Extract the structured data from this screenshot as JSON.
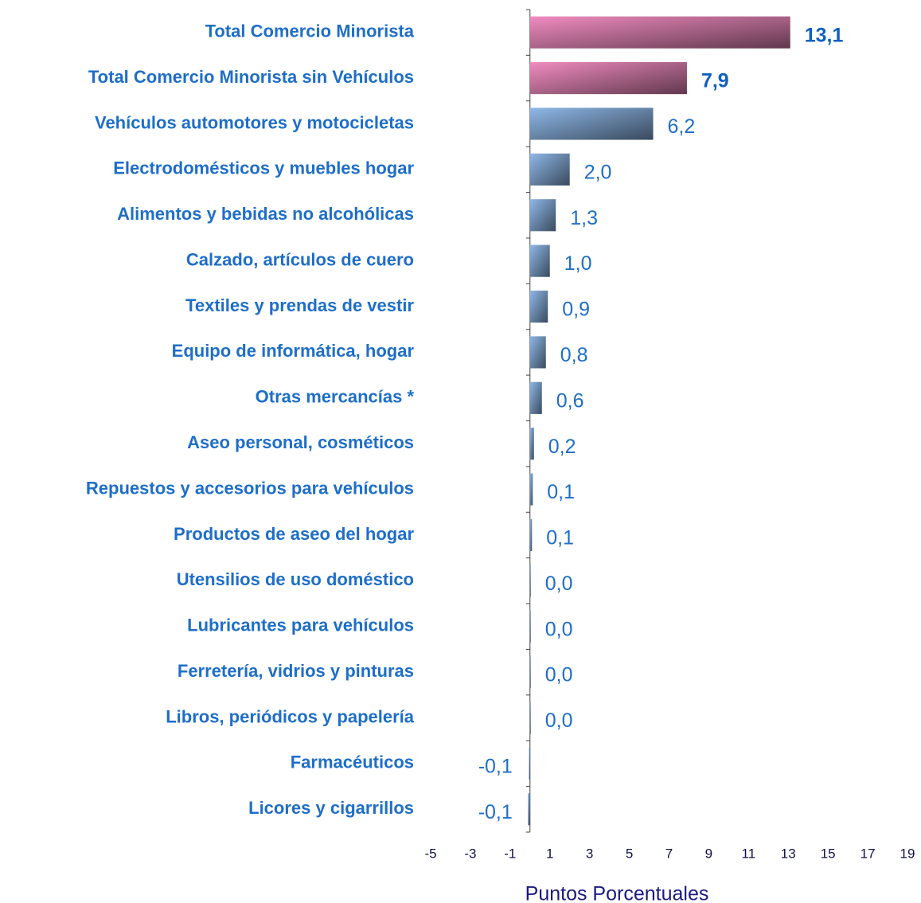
{
  "chart_data": {
    "type": "barh",
    "xlabel": "Puntos Porcentuales",
    "categories": [
      "Total Comercio Minorista",
      "Total Comercio Minorista sin Vehículos",
      "Vehículos automotores y motocicletas",
      "Electrodomésticos y muebles hogar",
      "Alimentos y bebidas no alcohólicas",
      "Calzado, artículos de cuero",
      "Textiles y prendas de vestir",
      "Equipo de informática, hogar",
      "Otras mercancías  *",
      "Aseo personal, cosméticos",
      "Repuestos y accesorios para vehículos",
      "Productos de aseo del  hogar",
      "Utensilios de uso doméstico",
      "Lubricantes para vehículos",
      "Ferretería, vidrios y pinturas",
      "Libros, periódicos y papelería",
      "Farmacéuticos",
      "Licores y cigarrillos"
    ],
    "values": [
      13.1,
      7.9,
      6.2,
      2.0,
      1.3,
      1.0,
      0.9,
      0.8,
      0.6,
      0.2,
      0.14,
      0.1,
      0.04,
      0.04,
      0.04,
      0.04,
      -0.05,
      -0.1
    ],
    "value_labels": [
      "13,1",
      "7,9",
      "6,2",
      "2,0",
      "1,3",
      "1,0",
      "0,9",
      "0,8",
      "0,6",
      "0,2",
      "0,1",
      "0,1",
      "0,0",
      "0,0",
      "0,0",
      "0,0",
      "-0,1",
      "-0,1"
    ],
    "colors": [
      "#f08cc0",
      "#f08cc0",
      "#8fb8e8",
      "#8fb8e8",
      "#8fb8e8",
      "#8fb8e8",
      "#8fb8e8",
      "#8fb8e8",
      "#8fb8e8",
      "#8fb8e8",
      "#8fb8e8",
      "#8fb8e8",
      "#8fb8e8",
      "#8fb8e8",
      "#8fb8e8",
      "#8fb8e8",
      "#8fb8e8",
      "#8fb8e8"
    ],
    "xlim": [
      -5,
      19
    ],
    "xticks": [
      -5,
      -3,
      -1,
      1,
      3,
      5,
      7,
      9,
      11,
      13,
      15,
      17,
      19
    ]
  }
}
